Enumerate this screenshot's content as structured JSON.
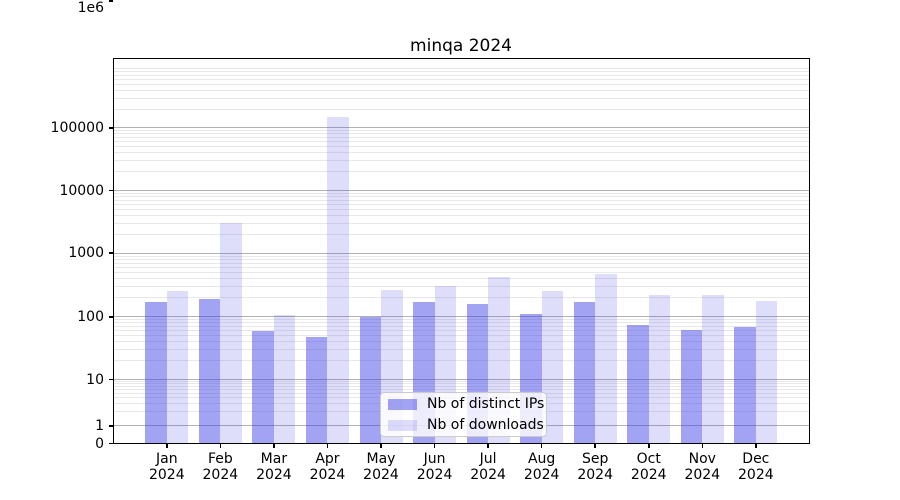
{
  "title": "minqa 2024",
  "colors": {
    "ips_fill": "rgba(60,60,230,0.47)",
    "downloads_fill": "rgba(60,60,230,0.17)",
    "grid_major": "#b2b2b2",
    "grid_minor": "#e8e8e8",
    "axis": "#000000"
  },
  "legend": {
    "items": [
      {
        "label": "Nb of distinct IPs",
        "series": "ips"
      },
      {
        "label": "Nb of downloads",
        "series": "downloads"
      }
    ]
  },
  "y_axis": {
    "ticks": [
      {
        "label": "1e6",
        "value": 1000000
      },
      {
        "label": "100000",
        "value": 100000
      },
      {
        "label": "10000",
        "value": 10000
      },
      {
        "label": "1000",
        "value": 1000
      },
      {
        "label": "100",
        "value": 100
      },
      {
        "label": "10",
        "value": 10
      },
      {
        "label": "1",
        "value": 1
      },
      {
        "label": "0",
        "value": 0
      }
    ]
  },
  "x_axis": {
    "months": [
      {
        "month": "Jan",
        "year": "2024"
      },
      {
        "month": "Feb",
        "year": "2024"
      },
      {
        "month": "Mar",
        "year": "2024"
      },
      {
        "month": "Apr",
        "year": "2024"
      },
      {
        "month": "May",
        "year": "2024"
      },
      {
        "month": "Jun",
        "year": "2024"
      },
      {
        "month": "Jul",
        "year": "2024"
      },
      {
        "month": "Aug",
        "year": "2024"
      },
      {
        "month": "Sep",
        "year": "2024"
      },
      {
        "month": "Oct",
        "year": "2024"
      },
      {
        "month": "Nov",
        "year": "2024"
      },
      {
        "month": "Dec",
        "year": "2024"
      }
    ]
  },
  "chart_data": {
    "type": "bar",
    "title": "minqa 2024",
    "categories": [
      "Jan 2024",
      "Feb 2024",
      "Mar 2024",
      "Apr 2024",
      "May 2024",
      "Jun 2024",
      "Jul 2024",
      "Aug 2024",
      "Sep 2024",
      "Oct 2024",
      "Nov 2024",
      "Dec 2024"
    ],
    "series": [
      {
        "name": "Nb of distinct IPs",
        "values": [
          165,
          190,
          58,
          47,
          97,
          165,
          155,
          110,
          165,
          72,
          61,
          68
        ]
      },
      {
        "name": "Nb of downloads",
        "values": [
          246,
          3000,
          103,
          145000,
          258,
          295,
          410,
          250,
          460,
          215,
          220,
          172
        ]
      }
    ],
    "xlabel": "",
    "ylabel": "",
    "yscale": "log (with 0 baseline, compressed below 10)",
    "ylim": [
      0,
      1200000
    ],
    "y_ticks": [
      0,
      1,
      10,
      100,
      1000,
      10000,
      100000,
      1000000
    ],
    "grid": "horizontal major + log minor gridlines",
    "legend_position": "lower center"
  }
}
